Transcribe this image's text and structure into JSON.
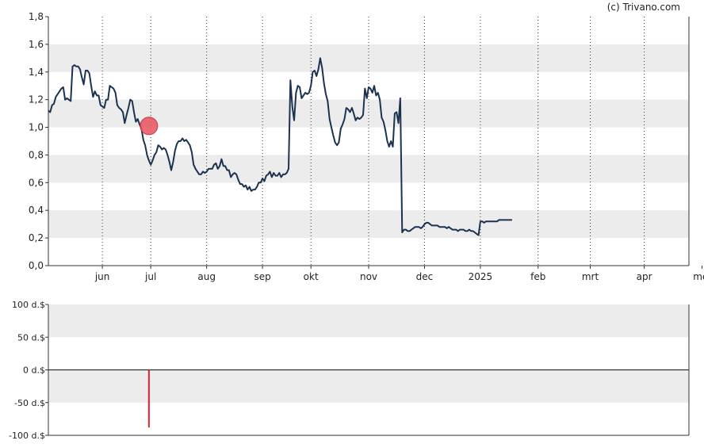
{
  "watermark": "(c) Trivano.com",
  "chart_data": [
    {
      "type": "line",
      "ylim": [
        0,
        1.8
      ],
      "y_ticks": [
        "0,0",
        "0,2",
        "0,4",
        "0,6",
        "0,8",
        "1,0",
        "1,2",
        "1,4",
        "1,6",
        "1,8"
      ],
      "x_ticks": [
        "jun",
        "jul",
        "aug",
        "sep",
        "okt",
        "nov",
        "dec",
        "2025",
        "feb",
        "mrt",
        "apr",
        "mei"
      ],
      "x_range": [
        -14,
        330
      ],
      "x_tick_positions": [
        15,
        41,
        71,
        101,
        127,
        158,
        188,
        218,
        249,
        277,
        306,
        337
      ],
      "marker": {
        "x": 40,
        "y": 1.01,
        "color": "#e8525e"
      },
      "series": [
        {
          "color": "#1b3350",
          "points": [
            [
              -14,
              1.12
            ],
            [
              -13,
              1.11
            ],
            [
              -12,
              1.16
            ],
            [
              -11,
              1.17
            ],
            [
              -10,
              1.22
            ],
            [
              -8,
              1.26
            ],
            [
              -7,
              1.28
            ],
            [
              -6,
              1.29
            ],
            [
              -5,
              1.2
            ],
            [
              -4,
              1.21
            ],
            [
              -3,
              1.2
            ],
            [
              -2,
              1.19
            ],
            [
              -1,
              1.44
            ],
            [
              0,
              1.45
            ],
            [
              1,
              1.44
            ],
            [
              2,
              1.44
            ],
            [
              3,
              1.42
            ],
            [
              4,
              1.36
            ],
            [
              5,
              1.31
            ],
            [
              6,
              1.41
            ],
            [
              7,
              1.41
            ],
            [
              8,
              1.39
            ],
            [
              9,
              1.3
            ],
            [
              10,
              1.22
            ],
            [
              11,
              1.26
            ],
            [
              12,
              1.23
            ],
            [
              13,
              1.23
            ],
            [
              14,
              1.16
            ],
            [
              16,
              1.14
            ],
            [
              17,
              1.2
            ],
            [
              18,
              1.2
            ],
            [
              19,
              1.3
            ],
            [
              20,
              1.29
            ],
            [
              21,
              1.28
            ],
            [
              22,
              1.25
            ],
            [
              23,
              1.16
            ],
            [
              24,
              1.14
            ],
            [
              25,
              1.13
            ],
            [
              26,
              1.11
            ],
            [
              27,
              1.03
            ],
            [
              28,
              1.09
            ],
            [
              29,
              1.14
            ],
            [
              30,
              1.2
            ],
            [
              31,
              1.19
            ],
            [
              32,
              1.11
            ],
            [
              33,
              1.04
            ],
            [
              34,
              1.06
            ],
            [
              35,
              1.02
            ],
            [
              36,
              0.99
            ],
            [
              37,
              0.91
            ],
            [
              38,
              0.87
            ],
            [
              39,
              0.8
            ],
            [
              40,
              0.76
            ],
            [
              41,
              0.73
            ],
            [
              42,
              0.76
            ],
            [
              43,
              0.8
            ],
            [
              44,
              0.82
            ],
            [
              45,
              0.87
            ],
            [
              46,
              0.86
            ],
            [
              47,
              0.84
            ],
            [
              48,
              0.85
            ],
            [
              49,
              0.84
            ],
            [
              50,
              0.8
            ],
            [
              51,
              0.75
            ],
            [
              52,
              0.69
            ],
            [
              53,
              0.75
            ],
            [
              54,
              0.83
            ],
            [
              55,
              0.88
            ],
            [
              56,
              0.9
            ],
            [
              57,
              0.9
            ],
            [
              58,
              0.92
            ],
            [
              59,
              0.9
            ],
            [
              60,
              0.91
            ],
            [
              61,
              0.89
            ],
            [
              62,
              0.87
            ],
            [
              63,
              0.82
            ],
            [
              64,
              0.73
            ],
            [
              65,
              0.7
            ],
            [
              66,
              0.68
            ],
            [
              67,
              0.66
            ],
            [
              68,
              0.66
            ],
            [
              69,
              0.68
            ],
            [
              70,
              0.67
            ],
            [
              71,
              0.68
            ],
            [
              72,
              0.7
            ],
            [
              73,
              0.7
            ],
            [
              74,
              0.7
            ],
            [
              75,
              0.73
            ],
            [
              76,
              0.74
            ],
            [
              77,
              0.7
            ],
            [
              78,
              0.72
            ],
            [
              79,
              0.77
            ],
            [
              80,
              0.72
            ],
            [
              81,
              0.72
            ],
            [
              82,
              0.69
            ],
            [
              83,
              0.69
            ],
            [
              84,
              0.64
            ],
            [
              85,
              0.66
            ],
            [
              86,
              0.67
            ],
            [
              87,
              0.66
            ],
            [
              88,
              0.62
            ],
            [
              89,
              0.59
            ],
            [
              90,
              0.59
            ],
            [
              91,
              0.57
            ],
            [
              92,
              0.58
            ],
            [
              93,
              0.55
            ],
            [
              94,
              0.57
            ],
            [
              95,
              0.54
            ],
            [
              96,
              0.55
            ],
            [
              97,
              0.55
            ],
            [
              98,
              0.57
            ],
            [
              99,
              0.6
            ],
            [
              100,
              0.6
            ],
            [
              101,
              0.63
            ],
            [
              102,
              0.61
            ],
            [
              103,
              0.65
            ],
            [
              104,
              0.66
            ],
            [
              105,
              0.68
            ],
            [
              106,
              0.64
            ],
            [
              107,
              0.67
            ],
            [
              108,
              0.65
            ],
            [
              109,
              0.65
            ],
            [
              110,
              0.67
            ],
            [
              111,
              0.64
            ],
            [
              112,
              0.66
            ],
            [
              113,
              0.66
            ],
            [
              114,
              0.67
            ],
            [
              115,
              0.7
            ],
            [
              116,
              1.34
            ],
            [
              117,
              1.15
            ],
            [
              118,
              1.05
            ],
            [
              119,
              1.25
            ],
            [
              120,
              1.3
            ],
            [
              121,
              1.29
            ],
            [
              122,
              1.21
            ],
            [
              123,
              1.23
            ],
            [
              124,
              1.25
            ],
            [
              125,
              1.24
            ],
            [
              126,
              1.25
            ],
            [
              127,
              1.3
            ],
            [
              128,
              1.4
            ],
            [
              129,
              1.41
            ],
            [
              130,
              1.37
            ],
            [
              131,
              1.42
            ],
            [
              132,
              1.5
            ],
            [
              133,
              1.43
            ],
            [
              134,
              1.32
            ],
            [
              135,
              1.24
            ],
            [
              136,
              1.19
            ],
            [
              137,
              1.06
            ],
            [
              138,
              1.0
            ],
            [
              139,
              0.94
            ],
            [
              140,
              0.89
            ],
            [
              141,
              0.87
            ],
            [
              142,
              0.89
            ],
            [
              143,
              0.99
            ],
            [
              144,
              1.02
            ],
            [
              145,
              1.06
            ],
            [
              146,
              1.14
            ],
            [
              147,
              1.13
            ],
            [
              148,
              1.11
            ],
            [
              149,
              1.14
            ],
            [
              150,
              1.1
            ],
            [
              151,
              1.05
            ],
            [
              152,
              1.07
            ],
            [
              153,
              1.06
            ],
            [
              154,
              1.07
            ],
            [
              155,
              1.09
            ],
            [
              156,
              1.28
            ],
            [
              157,
              1.21
            ],
            [
              158,
              1.29
            ],
            [
              159,
              1.28
            ],
            [
              160,
              1.25
            ],
            [
              161,
              1.3
            ],
            [
              162,
              1.23
            ],
            [
              163,
              1.25
            ],
            [
              164,
              1.2
            ],
            [
              165,
              1.07
            ],
            [
              166,
              1.04
            ],
            [
              167,
              0.98
            ],
            [
              168,
              0.9
            ],
            [
              169,
              0.86
            ],
            [
              170,
              0.9
            ],
            [
              171,
              0.86
            ],
            [
              172,
              1.1
            ],
            [
              173,
              1.11
            ],
            [
              174,
              1.03
            ],
            [
              175,
              1.21
            ],
            [
              176,
              0.24
            ],
            [
              177,
              0.26
            ],
            [
              178,
              0.26
            ],
            [
              179,
              0.25
            ],
            [
              180,
              0.25
            ],
            [
              181,
              0.26
            ],
            [
              182,
              0.27
            ],
            [
              183,
              0.28
            ],
            [
              184,
              0.28
            ],
            [
              185,
              0.28
            ],
            [
              186,
              0.27
            ],
            [
              187,
              0.28
            ],
            [
              188,
              0.3
            ],
            [
              189,
              0.31
            ],
            [
              190,
              0.31
            ],
            [
              191,
              0.3
            ],
            [
              192,
              0.29
            ],
            [
              193,
              0.29
            ],
            [
              194,
              0.29
            ],
            [
              195,
              0.29
            ],
            [
              196,
              0.28
            ],
            [
              197,
              0.28
            ],
            [
              198,
              0.28
            ],
            [
              199,
              0.28
            ],
            [
              200,
              0.27
            ],
            [
              201,
              0.28
            ],
            [
              202,
              0.27
            ],
            [
              203,
              0.26
            ],
            [
              204,
              0.26
            ],
            [
              205,
              0.26
            ],
            [
              206,
              0.25
            ],
            [
              207,
              0.26
            ],
            [
              208,
              0.26
            ],
            [
              209,
              0.26
            ],
            [
              210,
              0.25
            ],
            [
              211,
              0.25
            ],
            [
              212,
              0.26
            ],
            [
              213,
              0.25
            ],
            [
              214,
              0.25
            ],
            [
              215,
              0.24
            ],
            [
              216,
              0.23
            ],
            [
              217,
              0.22
            ],
            [
              218,
              0.32
            ],
            [
              219,
              0.32
            ],
            [
              220,
              0.31
            ],
            [
              221,
              0.32
            ],
            [
              222,
              0.32
            ],
            [
              223,
              0.32
            ],
            [
              224,
              0.32
            ],
            [
              225,
              0.32
            ],
            [
              226,
              0.32
            ],
            [
              227,
              0.32
            ],
            [
              228,
              0.33
            ],
            [
              229,
              0.33
            ],
            [
              230,
              0.33
            ],
            [
              231,
              0.33
            ],
            [
              232,
              0.33
            ],
            [
              233,
              0.33
            ],
            [
              234,
              0.33
            ],
            [
              235,
              0.33
            ]
          ]
        }
      ]
    },
    {
      "type": "bar",
      "ylim": [
        -100,
        100
      ],
      "y_ticks": [
        "100 d.$",
        "50 d.$",
        "0 d.$",
        "-50 d.$",
        "-100 d.$"
      ],
      "y_tick_values": [
        100,
        50,
        0,
        -50,
        -100
      ],
      "bars": [
        {
          "x": 40,
          "value": -88,
          "color": "#e0202a"
        }
      ]
    }
  ]
}
